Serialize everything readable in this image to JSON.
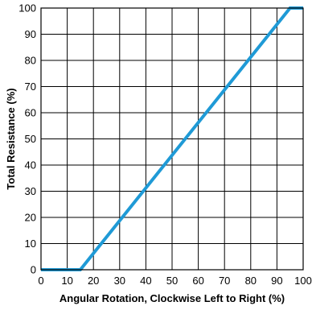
{
  "chart_data": {
    "type": "line",
    "title": "",
    "xlabel": "Angular Rotation, Clockwise Left to Right (%)",
    "ylabel": "Total Resistance (%)",
    "xlim": [
      0,
      100
    ],
    "ylim": [
      0,
      100
    ],
    "xticks": [
      0,
      10,
      20,
      30,
      40,
      50,
      60,
      70,
      80,
      90,
      100
    ],
    "yticks": [
      0,
      10,
      20,
      30,
      40,
      50,
      60,
      70,
      80,
      90,
      100
    ],
    "grid": true,
    "series": [
      {
        "color": "#1f9ad6",
        "x": [
          0,
          15,
          95,
          100
        ],
        "y": [
          0,
          0,
          100,
          100
        ]
      }
    ]
  }
}
